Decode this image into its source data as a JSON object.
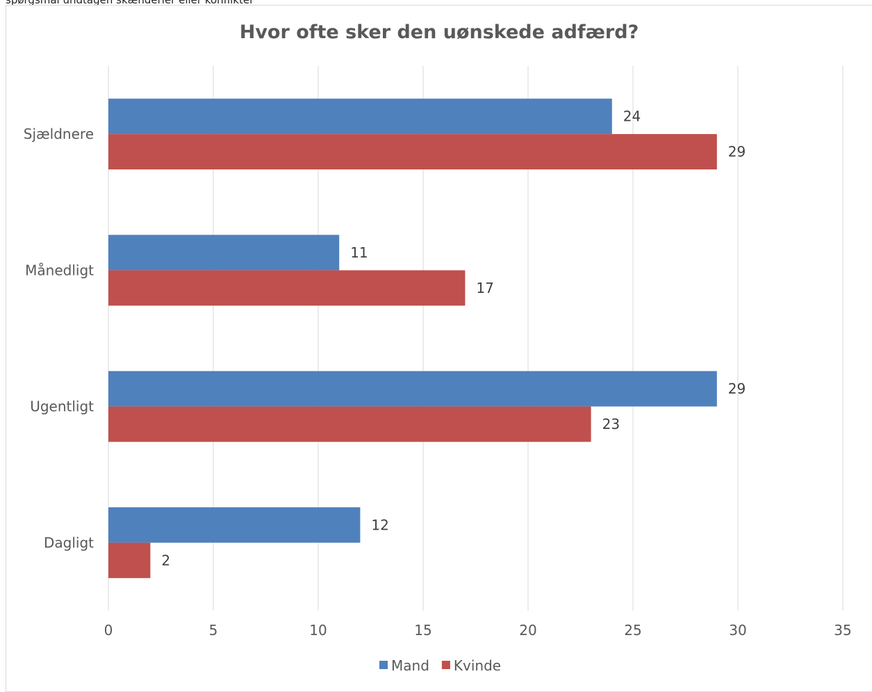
{
  "page": {
    "top_text": "spørgsmål undtagen skænderier eller konflikter"
  },
  "chart_data": {
    "type": "bar",
    "orientation": "horizontal",
    "title": "Hvor ofte sker den uønskede adfærd?",
    "categories": [
      "Sjældnere",
      "Månedligt",
      "Ugentligt",
      "Dagligt"
    ],
    "series": [
      {
        "name": "Mand",
        "values": [
          24,
          11,
          29,
          12
        ],
        "color": "#4f81bd"
      },
      {
        "name": "Kvinde",
        "values": [
          29,
          17,
          23,
          2
        ],
        "color": "#c0504d"
      }
    ],
    "xlim": [
      0,
      35
    ],
    "xticks": [
      0,
      5,
      10,
      15,
      20,
      25,
      30,
      35
    ],
    "grid": true,
    "legend": "bottom",
    "gridline_color": "#d9d9d9"
  }
}
